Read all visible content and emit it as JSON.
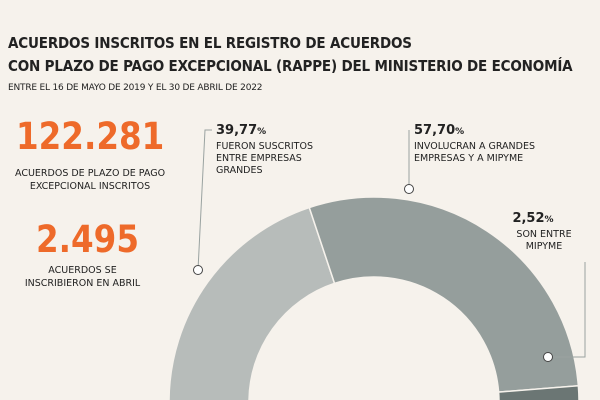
{
  "title_line1": "ACUERDOS INSCRITOS EN EL REGISTRO DE ACUERDOS",
  "title_line2": "CON PLAZO DE PAGO EXCEPCIONAL (RAPPE) DEL MINISTERIO DE ECONOMÍA",
  "subtitle": "ENTRE EL 16 DE MAYO DE 2019 Y EL 30 DE ABRIL DE 2022",
  "stats": [
    {
      "value": "122.281",
      "label_line1": "ACUERDOS DE PLAZO DE PAGO",
      "label_line2": "EXCEPCIONAL INSCRITOS"
    },
    {
      "value": "2.495",
      "label_line1": "ACUERDOS SE",
      "label_line2": "INSCRIBIERON EN ABRIL"
    }
  ],
  "colors": {
    "accent": "#ee6a2a",
    "background": "#f6f2ec"
  },
  "chart_data": {
    "type": "pie",
    "style": "half-donut",
    "unit": "%",
    "slices": [
      {
        "value": 39.77,
        "label": "39,77",
        "unit": "%",
        "text_lines": [
          "FUERON SUSCRITOS",
          "ENTRE EMPRESAS",
          "GRANDES"
        ],
        "color": "#b7bcba"
      },
      {
        "value": 57.7,
        "label": "57,70",
        "unit": "%",
        "text_lines": [
          "INVOLUCRAN A GRANDES",
          "EMPRESAS Y A MIPYME"
        ],
        "color": "#959e9c"
      },
      {
        "value": 2.52,
        "label": "2,52",
        "unit": "%",
        "text_lines": [
          "SON ENTRE",
          "MIPYME"
        ],
        "color": "#6b7674"
      }
    ]
  }
}
